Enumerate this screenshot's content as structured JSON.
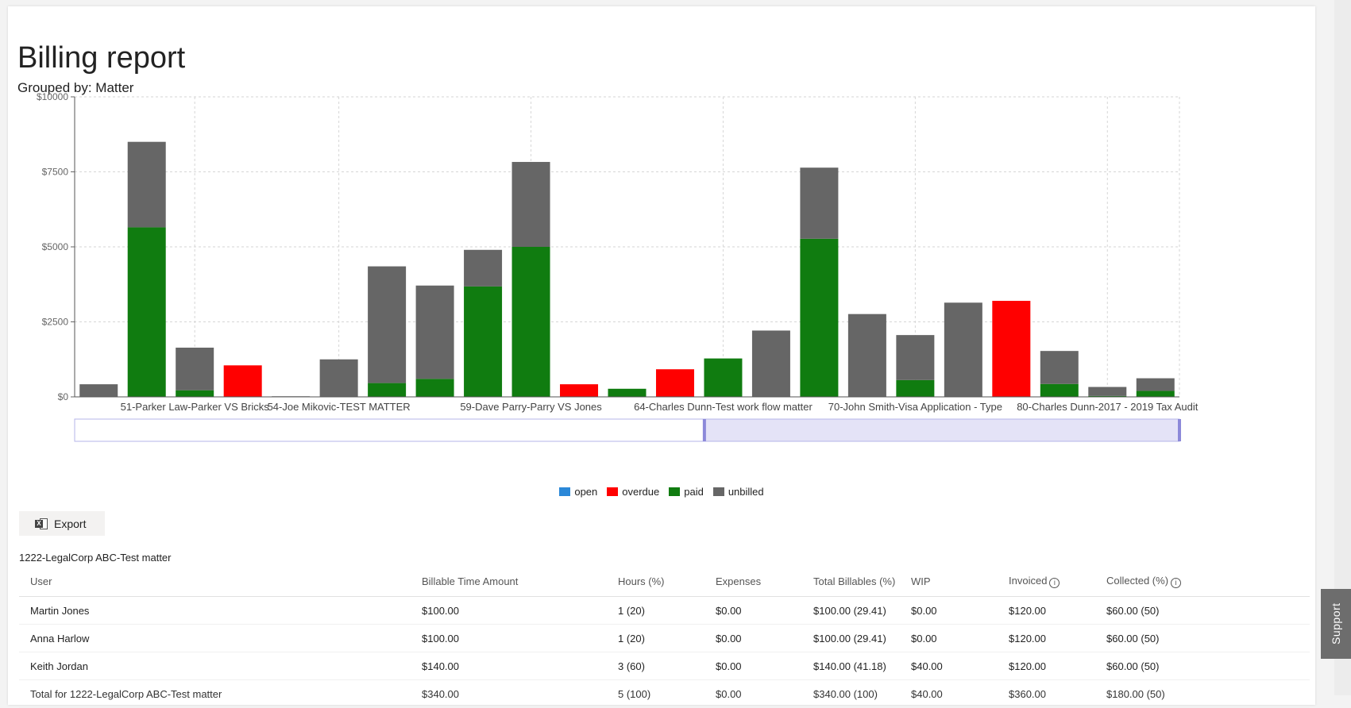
{
  "report": {
    "title": "Billing report",
    "grouped_by": "Grouped by: Matter"
  },
  "chart_data": {
    "type": "bar",
    "stacked": true,
    "ylim": [
      0,
      10000
    ],
    "y_ticks": [
      {
        "value": 0,
        "label": "$0"
      },
      {
        "value": 2500,
        "label": "$2500"
      },
      {
        "value": 5000,
        "label": "$5000"
      },
      {
        "value": 7500,
        "label": "$7500"
      },
      {
        "value": 10000,
        "label": "$10000"
      }
    ],
    "x_labels": [
      {
        "index": 2,
        "label": "51-Parker Law-Parker VS Bricks"
      },
      {
        "index": 5,
        "label": "54-Joe Mikovic-TEST MATTER"
      },
      {
        "index": 9,
        "label": "59-Dave Parry-Parry VS Jones"
      },
      {
        "index": 13,
        "label": "64-Charles Dunn-Test work flow matter"
      },
      {
        "index": 17,
        "label": "70-John Smith-Visa Application - Type"
      },
      {
        "index": 21,
        "label": "80-Charles Dunn-2017 - 2019 Tax Audit"
      }
    ],
    "series": [
      {
        "name": "open",
        "color": "#2b88d8",
        "values": [
          0,
          0,
          0,
          0,
          0,
          0,
          0,
          0,
          0,
          0,
          0,
          0,
          0,
          0,
          0,
          0,
          0,
          0,
          0,
          0,
          0,
          0,
          0
        ]
      },
      {
        "name": "overdue",
        "color": "#ff0000",
        "values": [
          0,
          0,
          0,
          1050,
          0,
          0,
          0,
          0,
          0,
          0,
          420,
          0,
          920,
          0,
          0,
          0,
          0,
          0,
          0,
          3200,
          0,
          0,
          0
        ]
      },
      {
        "name": "paid",
        "color": "#107c10",
        "values": [
          0,
          5650,
          220,
          0,
          0,
          0,
          460,
          600,
          3680,
          5000,
          0,
          270,
          0,
          1280,
          0,
          5270,
          0,
          560,
          0,
          0,
          430,
          30,
          200
        ]
      },
      {
        "name": "unbilled",
        "color": "#666666",
        "values": [
          420,
          2850,
          1420,
          0,
          20,
          1250,
          3890,
          3110,
          1220,
          2830,
          0,
          0,
          0,
          0,
          2210,
          2370,
          2760,
          1500,
          3140,
          0,
          1100,
          300,
          420
        ]
      }
    ],
    "range_selector": {
      "start": 0.57,
      "end": 1.0
    },
    "grid": true
  },
  "toolbar": {
    "export_label": "Export"
  },
  "table": {
    "group_title": "1222-LegalCorp ABC-Test matter",
    "headers": {
      "user": "User",
      "billable": "Billable Time Amount",
      "hours": "Hours (%)",
      "expenses": "Expenses",
      "total": "Total Billables (%)",
      "wip": "WIP",
      "invoiced": "Invoiced",
      "collected": "Collected (%)"
    },
    "rows": [
      {
        "user": "Martin Jones",
        "billable": "$100.00",
        "hours": "1 (20)",
        "expenses": "$0.00",
        "total": "$100.00 (29.41)",
        "wip": "$0.00",
        "invoiced": "$120.00",
        "collected": "$60.00 (50)"
      },
      {
        "user": "Anna Harlow",
        "billable": "$100.00",
        "hours": "1 (20)",
        "expenses": "$0.00",
        "total": "$100.00 (29.41)",
        "wip": "$0.00",
        "invoiced": "$120.00",
        "collected": "$60.00 (50)"
      },
      {
        "user": "Keith Jordan",
        "billable": "$140.00",
        "hours": "3 (60)",
        "expenses": "$0.00",
        "total": "$140.00 (41.18)",
        "wip": "$40.00",
        "invoiced": "$120.00",
        "collected": "$60.00 (50)"
      }
    ],
    "total_row": {
      "user": "Total for 1222-LegalCorp ABC-Test matter",
      "billable": "$340.00",
      "hours": "5 (100)",
      "expenses": "$0.00",
      "total": "$340.00 (100)",
      "wip": "$40.00",
      "invoiced": "$360.00",
      "collected": "$180.00 (50)"
    }
  },
  "support_label": "Support",
  "icons": {
    "export": "excel-icon",
    "info": "info-icon"
  }
}
